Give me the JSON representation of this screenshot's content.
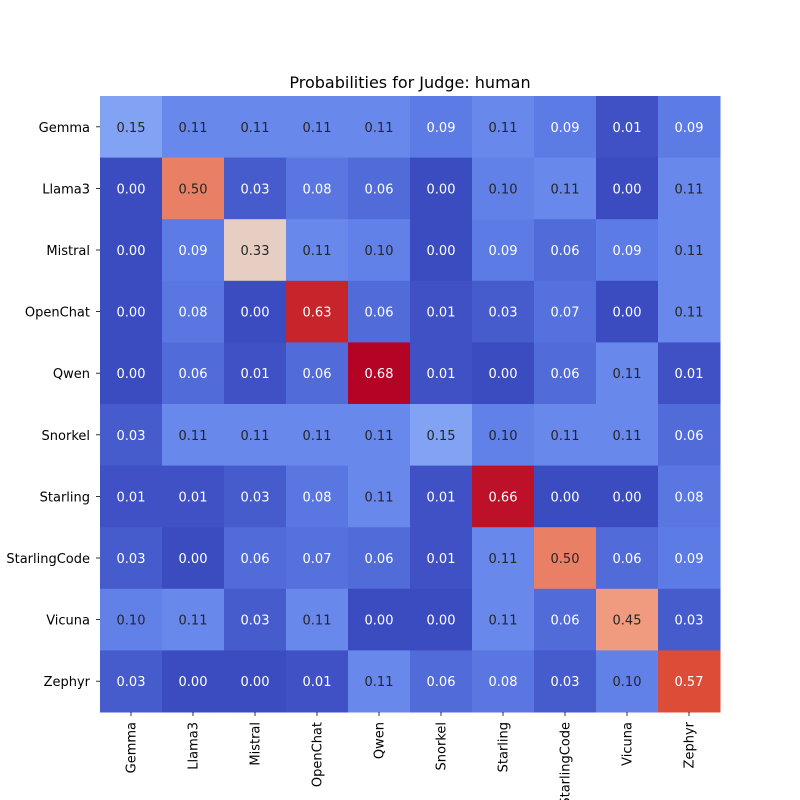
{
  "chart_data": {
    "type": "heatmap",
    "title": "Probabilities for Judge: human",
    "xlabel": "",
    "ylabel": "",
    "rows": [
      "Gemma",
      "Llama3",
      "Mistral",
      "OpenChat",
      "Qwen",
      "Snorkel",
      "Starling",
      "StarlingCode",
      "Vicuna",
      "Zephyr"
    ],
    "columns": [
      "Gemma",
      "Llama3",
      "Mistral",
      "OpenChat",
      "Qwen",
      "Snorkel",
      "Starling",
      "StarlingCode",
      "Vicuna",
      "Zephyr"
    ],
    "values": [
      [
        0.15,
        0.11,
        0.11,
        0.11,
        0.11,
        0.09,
        0.11,
        0.09,
        0.01,
        0.09
      ],
      [
        0.0,
        0.5,
        0.03,
        0.08,
        0.06,
        0.0,
        0.1,
        0.11,
        0.0,
        0.11
      ],
      [
        0.0,
        0.09,
        0.33,
        0.11,
        0.1,
        0.0,
        0.09,
        0.06,
        0.09,
        0.11
      ],
      [
        0.0,
        0.08,
        0.0,
        0.63,
        0.06,
        0.01,
        0.03,
        0.07,
        0.0,
        0.11
      ],
      [
        0.0,
        0.06,
        0.01,
        0.06,
        0.68,
        0.01,
        0.0,
        0.06,
        0.11,
        0.01
      ],
      [
        0.03,
        0.11,
        0.11,
        0.11,
        0.11,
        0.15,
        0.1,
        0.11,
        0.11,
        0.06
      ],
      [
        0.01,
        0.01,
        0.03,
        0.08,
        0.11,
        0.01,
        0.66,
        0.0,
        0.0,
        0.08
      ],
      [
        0.03,
        0.0,
        0.06,
        0.07,
        0.06,
        0.01,
        0.11,
        0.5,
        0.06,
        0.09
      ],
      [
        0.1,
        0.11,
        0.03,
        0.11,
        0.0,
        0.0,
        0.11,
        0.06,
        0.45,
        0.03
      ],
      [
        0.03,
        0.0,
        0.0,
        0.01,
        0.11,
        0.06,
        0.08,
        0.03,
        0.1,
        0.57
      ]
    ],
    "colormap": "coolwarm",
    "colormap_stops": [
      "#3b4cc0",
      "#5f7fe8",
      "#a0c0fc",
      "#dddcdc",
      "#f7b89c",
      "#ec8a6e",
      "#d9432f",
      "#b40426"
    ],
    "colorbar": false,
    "grid": false,
    "value_format": "2 decimals"
  }
}
